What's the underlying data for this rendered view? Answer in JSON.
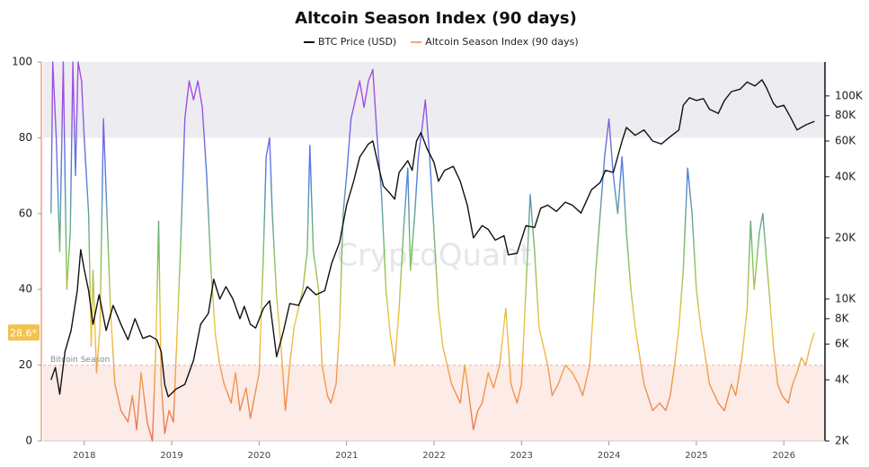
{
  "chart_data": {
    "type": "line",
    "title": "Altcoin Season Index (90 days)",
    "watermark": "CryptoQuant",
    "xlim": [
      2017.53,
      2026.47
    ],
    "xticks": [
      2018,
      2019,
      2020,
      2021,
      2022,
      2023,
      2024,
      2025,
      2026
    ],
    "ylim": [
      0,
      100
    ],
    "yticks": [
      0,
      20,
      40,
      60,
      80,
      100
    ],
    "y2lim": [
      2000,
      147000
    ],
    "y2scale": "log",
    "y2ticks": [
      {
        "value": 2000,
        "label": "2K"
      },
      {
        "value": 4000,
        "label": "4K"
      },
      {
        "value": 6000,
        "label": "6K"
      },
      {
        "value": 8000,
        "label": "8K"
      },
      {
        "value": 10000,
        "label": "10K"
      },
      {
        "value": 20000,
        "label": "20K"
      },
      {
        "value": 40000,
        "label": "40K"
      },
      {
        "value": 60000,
        "label": "60K"
      },
      {
        "value": 80000,
        "label": "80K"
      },
      {
        "value": 100000,
        "label": "100K"
      }
    ],
    "bands": [
      {
        "from": 80,
        "to": 100,
        "color": "#ededf1"
      },
      {
        "from": 0,
        "to": 20,
        "color": "#fdebe7",
        "label": "Bitcoin Season"
      }
    ],
    "current_marker": {
      "value": 28.6,
      "label": "28.6*",
      "color": "#f2c14e"
    },
    "colorscale": [
      {
        "value": 0,
        "color": "#ea6f52"
      },
      {
        "value": 30,
        "color": "#f1c444"
      },
      {
        "value": 50,
        "color": "#78c060"
      },
      {
        "value": 70,
        "color": "#4f7fe0"
      },
      {
        "value": 90,
        "color": "#a24fe0"
      }
    ],
    "series": [
      {
        "name": "BTC Price (USD)",
        "color": "#111111",
        "axis": "y2",
        "x": [
          2017.62,
          2017.67,
          2017.72,
          2017.78,
          2017.85,
          2017.92,
          2017.96,
          2018.0,
          2018.05,
          2018.1,
          2018.17,
          2018.25,
          2018.33,
          2018.42,
          2018.5,
          2018.58,
          2018.67,
          2018.75,
          2018.83,
          2018.88,
          2018.92,
          2018.96,
          2019.05,
          2019.15,
          2019.25,
          2019.33,
          2019.42,
          2019.48,
          2019.55,
          2019.62,
          2019.7,
          2019.78,
          2019.83,
          2019.9,
          2019.96,
          2020.05,
          2020.12,
          2020.2,
          2020.28,
          2020.35,
          2020.45,
          2020.55,
          2020.65,
          2020.75,
          2020.83,
          2020.92,
          2021.0,
          2021.08,
          2021.15,
          2021.25,
          2021.3,
          2021.37,
          2021.42,
          2021.5,
          2021.55,
          2021.6,
          2021.7,
          2021.75,
          2021.8,
          2021.85,
          2021.92,
          2022.0,
          2022.05,
          2022.12,
          2022.22,
          2022.3,
          2022.38,
          2022.45,
          2022.55,
          2022.62,
          2022.7,
          2022.8,
          2022.85,
          2022.95,
          2023.05,
          2023.15,
          2023.22,
          2023.3,
          2023.4,
          2023.5,
          2023.58,
          2023.68,
          2023.8,
          2023.9,
          2023.96,
          2024.05,
          2024.15,
          2024.2,
          2024.3,
          2024.4,
          2024.5,
          2024.6,
          2024.7,
          2024.8,
          2024.85,
          2024.92,
          2025.0,
          2025.08,
          2025.15,
          2025.25,
          2025.32,
          2025.4,
          2025.5,
          2025.58,
          2025.67,
          2025.75,
          2025.8,
          2025.88,
          2025.92,
          2026.0,
          2026.08,
          2026.15,
          2026.25,
          2026.35
        ],
        "values": [
          4000,
          4600,
          3400,
          5500,
          7000,
          11000,
          17500,
          14000,
          11000,
          7500,
          10500,
          7000,
          9300,
          7500,
          6300,
          8000,
          6400,
          6600,
          6300,
          5500,
          3800,
          3300,
          3600,
          3800,
          5000,
          7500,
          8500,
          12500,
          10000,
          11500,
          10000,
          8000,
          9200,
          7500,
          7200,
          9000,
          9800,
          5200,
          7000,
          9500,
          9300,
          11500,
          10500,
          11000,
          15000,
          19000,
          29000,
          38000,
          50000,
          58000,
          60000,
          44000,
          36000,
          33000,
          31000,
          42000,
          48000,
          43000,
          60000,
          66000,
          55000,
          47000,
          38000,
          43000,
          45000,
          38000,
          29000,
          20000,
          23000,
          22000,
          19500,
          20500,
          16500,
          16800,
          23000,
          22500,
          28000,
          29000,
          27000,
          30000,
          29000,
          26500,
          34500,
          37500,
          43000,
          42000,
          60000,
          70000,
          64000,
          68000,
          60000,
          58000,
          63000,
          68000,
          90000,
          98000,
          95000,
          97000,
          86000,
          82000,
          95000,
          105000,
          108000,
          117000,
          112000,
          120000,
          110000,
          92000,
          88000,
          90000,
          78000,
          68000,
          72000,
          75000
        ]
      },
      {
        "name": "Altcoin Season Index (90 days)",
        "color": "#f4a37a",
        "axis": "y",
        "x": [
          2017.62,
          2017.64,
          2017.68,
          2017.72,
          2017.76,
          2017.8,
          2017.84,
          2017.87,
          2017.9,
          2017.93,
          2017.97,
          2018.0,
          2018.05,
          2018.08,
          2018.1,
          2018.14,
          2018.18,
          2018.22,
          2018.3,
          2018.35,
          2018.42,
          2018.5,
          2018.55,
          2018.6,
          2018.65,
          2018.72,
          2018.78,
          2018.82,
          2018.85,
          2018.88,
          2018.92,
          2018.97,
          2019.02,
          2019.1,
          2019.15,
          2019.2,
          2019.25,
          2019.3,
          2019.35,
          2019.4,
          2019.45,
          2019.5,
          2019.55,
          2019.6,
          2019.68,
          2019.73,
          2019.78,
          2019.85,
          2019.9,
          2019.95,
          2020.0,
          2020.05,
          2020.08,
          2020.12,
          2020.15,
          2020.2,
          2020.25,
          2020.3,
          2020.35,
          2020.4,
          2020.45,
          2020.5,
          2020.55,
          2020.58,
          2020.62,
          2020.68,
          2020.72,
          2020.78,
          2020.82,
          2020.88,
          2020.92,
          2020.96,
          2021.0,
          2021.05,
          2021.1,
          2021.15,
          2021.2,
          2021.25,
          2021.3,
          2021.35,
          2021.4,
          2021.45,
          2021.5,
          2021.55,
          2021.6,
          2021.65,
          2021.7,
          2021.73,
          2021.78,
          2021.82,
          2021.86,
          2021.9,
          2021.95,
          2022.0,
          2022.05,
          2022.1,
          2022.2,
          2022.3,
          2022.35,
          2022.4,
          2022.45,
          2022.5,
          2022.55,
          2022.62,
          2022.68,
          2022.75,
          2022.82,
          2022.88,
          2022.95,
          2023.0,
          2023.05,
          2023.1,
          2023.15,
          2023.2,
          2023.3,
          2023.35,
          2023.42,
          2023.5,
          2023.58,
          2023.65,
          2023.7,
          2023.78,
          2023.85,
          2023.9,
          2023.95,
          2024.0,
          2024.05,
          2024.1,
          2024.15,
          2024.2,
          2024.25,
          2024.3,
          2024.4,
          2024.5,
          2024.58,
          2024.65,
          2024.7,
          2024.75,
          2024.8,
          2024.85,
          2024.9,
          2024.95,
          2025.0,
          2025.05,
          2025.15,
          2025.25,
          2025.32,
          2025.4,
          2025.45,
          2025.52,
          2025.58,
          2025.62,
          2025.66,
          2025.72,
          2025.76,
          2025.8,
          2025.83,
          2025.88,
          2025.93,
          2025.98,
          2026.05,
          2026.1,
          2026.15,
          2026.2,
          2026.25,
          2026.3,
          2026.35
        ],
        "values": [
          60,
          100,
          80,
          50,
          100,
          40,
          55,
          100,
          70,
          100,
          95,
          80,
          60,
          25,
          45,
          18,
          30,
          85,
          35,
          15,
          8,
          5,
          12,
          3,
          18,
          5,
          0,
          25,
          58,
          15,
          2,
          8,
          5,
          50,
          85,
          95,
          90,
          95,
          88,
          70,
          45,
          28,
          20,
          15,
          10,
          18,
          8,
          14,
          6,
          12,
          18,
          50,
          75,
          80,
          60,
          38,
          25,
          8,
          20,
          30,
          35,
          40,
          50,
          78,
          50,
          40,
          20,
          12,
          10,
          15,
          30,
          60,
          70,
          85,
          90,
          95,
          88,
          95,
          98,
          80,
          65,
          40,
          28,
          20,
          35,
          55,
          72,
          45,
          60,
          75,
          82,
          90,
          75,
          55,
          35,
          25,
          15,
          10,
          20,
          12,
          3,
          8,
          10,
          18,
          14,
          20,
          35,
          15,
          10,
          15,
          40,
          65,
          50,
          30,
          20,
          12,
          15,
          20,
          18,
          15,
          12,
          20,
          45,
          60,
          75,
          85,
          70,
          60,
          75,
          55,
          40,
          30,
          15,
          8,
          10,
          8,
          12,
          20,
          30,
          45,
          72,
          60,
          40,
          30,
          15,
          10,
          8,
          15,
          12,
          22,
          35,
          58,
          40,
          55,
          60,
          48,
          40,
          25,
          15,
          12,
          10,
          15,
          18,
          22,
          20,
          25,
          28.6
        ]
      }
    ]
  }
}
